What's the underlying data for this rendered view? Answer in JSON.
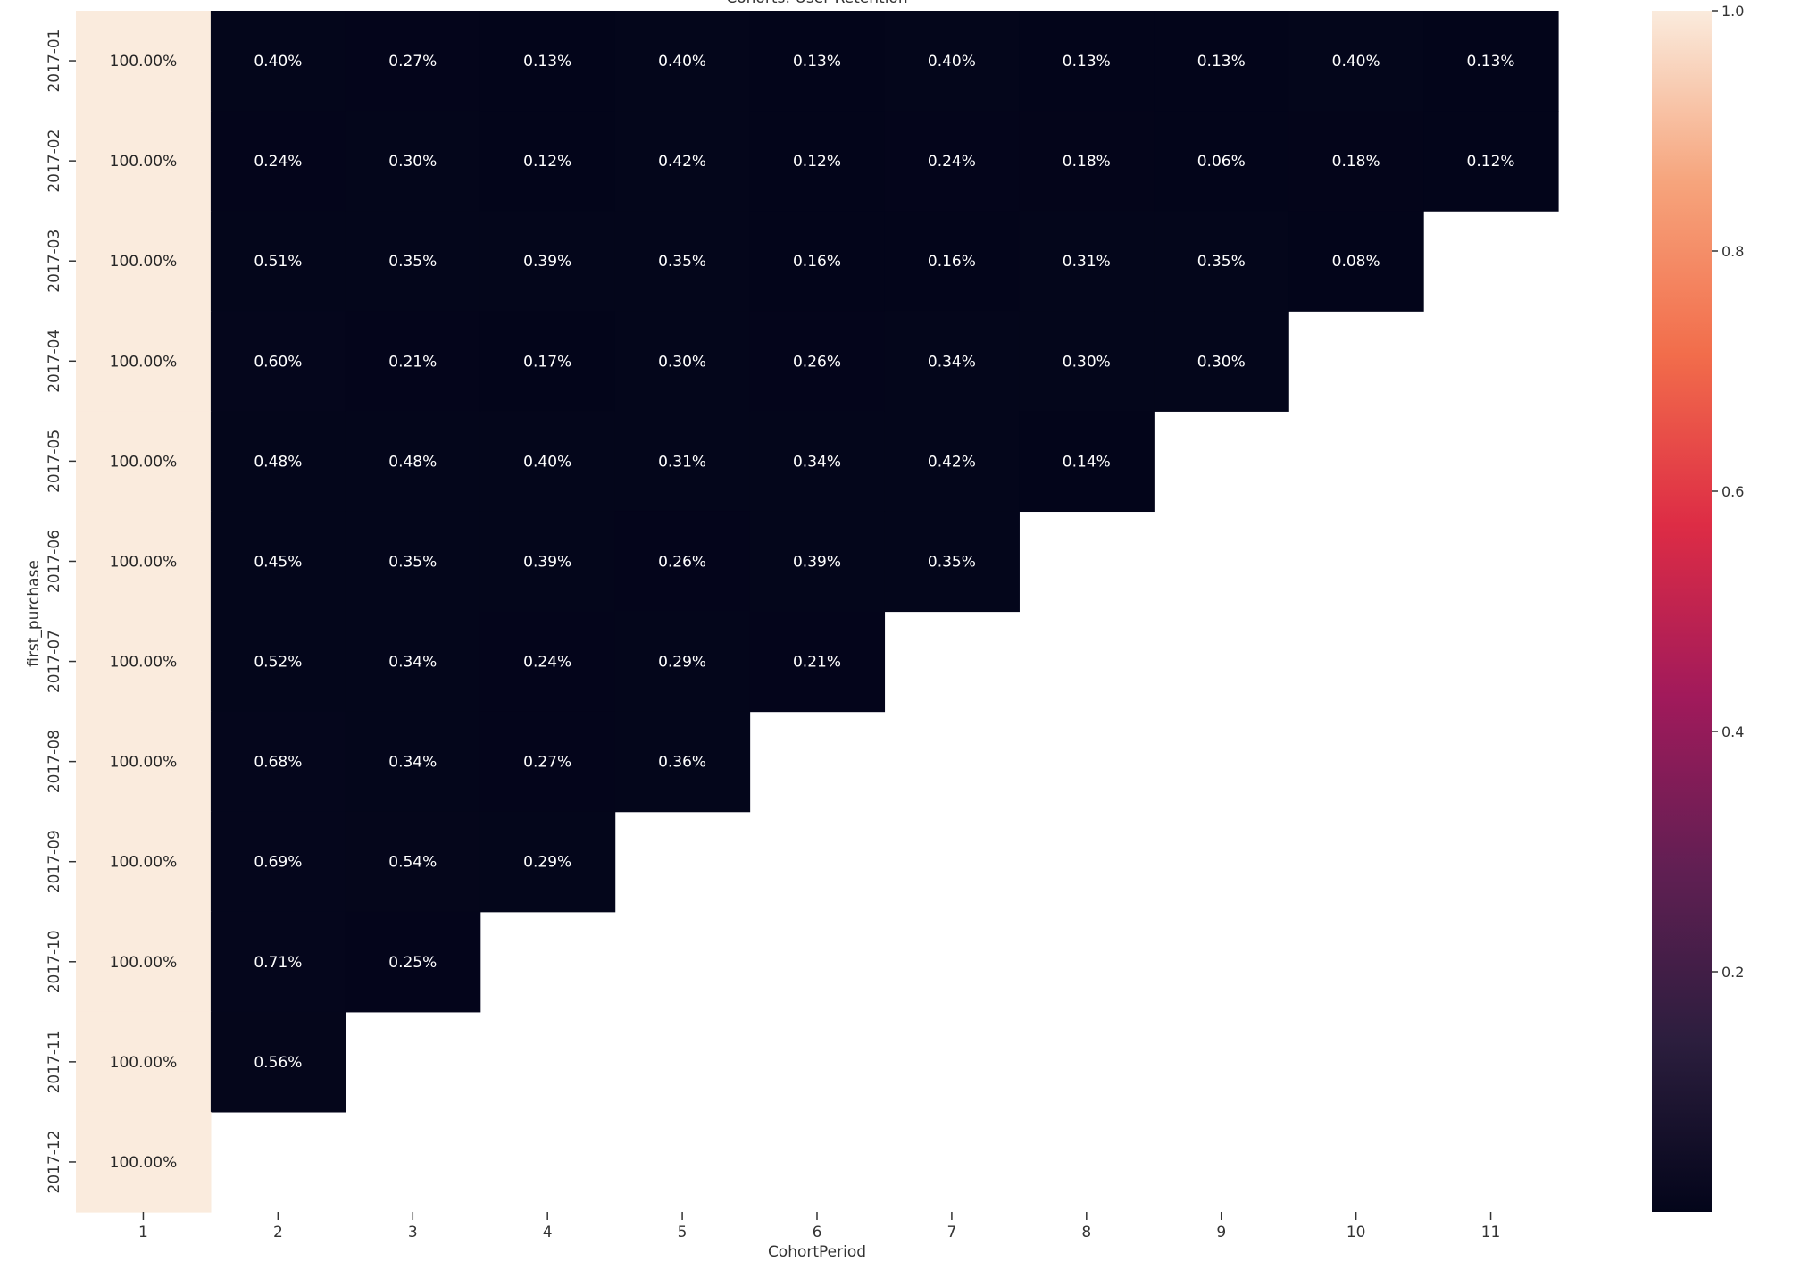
{
  "chart_data": {
    "type": "heatmap",
    "title": "Cohorts: User Retention",
    "xlabel": "CohortPeriod",
    "ylabel": "first_purchase",
    "x_categories": [
      "1",
      "2",
      "3",
      "4",
      "5",
      "6",
      "7",
      "8",
      "9",
      "10",
      "11"
    ],
    "y_categories": [
      "2017-01",
      "2017-02",
      "2017-03",
      "2017-04",
      "2017-05",
      "2017-06",
      "2017-07",
      "2017-08",
      "2017-09",
      "2017-10",
      "2017-11",
      "2017-12"
    ],
    "values": [
      [
        1.0,
        0.004,
        0.0027,
        0.0013,
        0.004,
        0.0013,
        0.004,
        0.0013,
        0.0013,
        0.004,
        0.0013
      ],
      [
        1.0,
        0.0024,
        0.003,
        0.0012,
        0.0042,
        0.0012,
        0.0024,
        0.0018,
        0.0006,
        0.0018,
        0.0012
      ],
      [
        1.0,
        0.0051,
        0.0035,
        0.0039,
        0.0035,
        0.0016,
        0.0016,
        0.0031,
        0.0035,
        0.0008,
        null
      ],
      [
        1.0,
        0.006,
        0.0021,
        0.0017,
        0.003,
        0.0026,
        0.0034,
        0.003,
        0.003,
        null,
        null
      ],
      [
        1.0,
        0.0048,
        0.0048,
        0.004,
        0.0031,
        0.0034,
        0.0042,
        0.0014,
        null,
        null,
        null
      ],
      [
        1.0,
        0.0045,
        0.0035,
        0.0039,
        0.0026,
        0.0039,
        0.0035,
        null,
        null,
        null,
        null
      ],
      [
        1.0,
        0.0052,
        0.0034,
        0.0024,
        0.0029,
        0.0021,
        null,
        null,
        null,
        null,
        null
      ],
      [
        1.0,
        0.0068,
        0.0034,
        0.0027,
        0.0036,
        null,
        null,
        null,
        null,
        null,
        null
      ],
      [
        1.0,
        0.0069,
        0.0054,
        0.0029,
        null,
        null,
        null,
        null,
        null,
        null,
        null
      ],
      [
        1.0,
        0.0071,
        0.0025,
        null,
        null,
        null,
        null,
        null,
        null,
        null,
        null
      ],
      [
        1.0,
        0.0056,
        null,
        null,
        null,
        null,
        null,
        null,
        null,
        null,
        null
      ],
      [
        1.0,
        null,
        null,
        null,
        null,
        null,
        null,
        null,
        null,
        null,
        null
      ]
    ],
    "annotations": [
      [
        "100.00%",
        "0.40%",
        "0.27%",
        "0.13%",
        "0.40%",
        "0.13%",
        "0.40%",
        "0.13%",
        "0.13%",
        "0.40%",
        "0.13%"
      ],
      [
        "100.00%",
        "0.24%",
        "0.30%",
        "0.12%",
        "0.42%",
        "0.12%",
        "0.24%",
        "0.18%",
        "0.06%",
        "0.18%",
        "0.12%"
      ],
      [
        "100.00%",
        "0.51%",
        "0.35%",
        "0.39%",
        "0.35%",
        "0.16%",
        "0.16%",
        "0.31%",
        "0.35%",
        "0.08%",
        null
      ],
      [
        "100.00%",
        "0.60%",
        "0.21%",
        "0.17%",
        "0.30%",
        "0.26%",
        "0.34%",
        "0.30%",
        "0.30%",
        null,
        null
      ],
      [
        "100.00%",
        "0.48%",
        "0.48%",
        "0.40%",
        "0.31%",
        "0.34%",
        "0.42%",
        "0.14%",
        null,
        null,
        null
      ],
      [
        "100.00%",
        "0.45%",
        "0.35%",
        "0.39%",
        "0.26%",
        "0.39%",
        "0.35%",
        null,
        null,
        null,
        null
      ],
      [
        "100.00%",
        "0.52%",
        "0.34%",
        "0.24%",
        "0.29%",
        "0.21%",
        null,
        null,
        null,
        null,
        null
      ],
      [
        "100.00%",
        "0.68%",
        "0.34%",
        "0.27%",
        "0.36%",
        null,
        null,
        null,
        null,
        null,
        null
      ],
      [
        "100.00%",
        "0.69%",
        "0.54%",
        "0.29%",
        null,
        null,
        null,
        null,
        null,
        null,
        null
      ],
      [
        "100.00%",
        "0.71%",
        "0.25%",
        null,
        null,
        null,
        null,
        null,
        null,
        null,
        null
      ],
      [
        "100.00%",
        "0.56%",
        null,
        null,
        null,
        null,
        null,
        null,
        null,
        null,
        null
      ],
      [
        "100.00%",
        null,
        null,
        null,
        null,
        null,
        null,
        null,
        null,
        null,
        null
      ]
    ],
    "colormap": "rocket",
    "colormap_stops": [
      "#03051a",
      "#2c1e3e",
      "#611f53",
      "#a11a5b",
      "#dd2c45",
      "#f26d4b",
      "#f6a47c",
      "#faebdd"
    ],
    "colorbar": {
      "ticks": [
        "0.2",
        "0.4",
        "0.6",
        "0.8",
        "1.0"
      ],
      "range": [
        0.0,
        1.0
      ]
    }
  }
}
